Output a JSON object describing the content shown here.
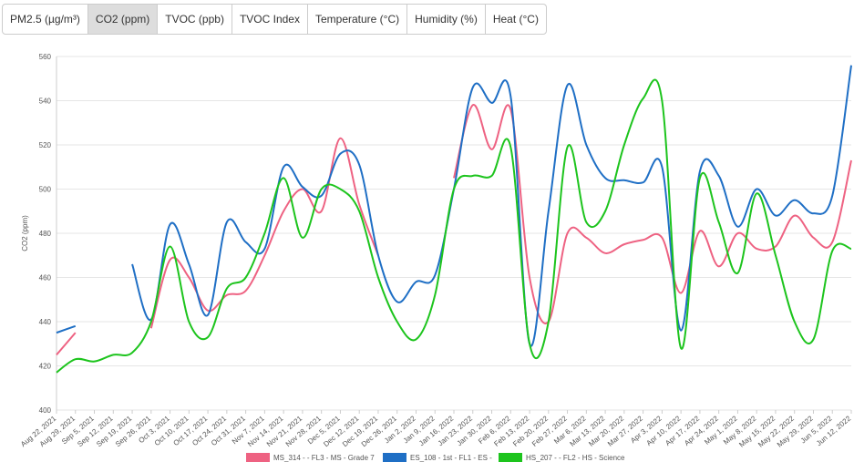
{
  "tabs": [
    "PM2.5 (µg/m³)",
    "CO2 (ppm)",
    "TVOC (ppb)",
    "TVOC Index",
    "Temperature (°C)",
    "Humidity (%)",
    "Heat (°C)"
  ],
  "active_tab": 1,
  "chart_data": {
    "type": "line",
    "y_label": "CO2 (ppm)",
    "categories": [
      "Aug 22, 2021",
      "Aug 29, 2021",
      "Sep 5, 2021",
      "Sep 12, 2021",
      "Sep 19, 2021",
      "Sep 26, 2021",
      "Oct 3, 2021",
      "Oct 10, 2021",
      "Oct 17, 2021",
      "Oct 24, 2021",
      "Oct 31, 2021",
      "Nov 7, 2021",
      "Nov 14, 2021",
      "Nov 21, 2021",
      "Nov 28, 2021",
      "Dec 5, 2021",
      "Dec 12, 2021",
      "Dec 19, 2021",
      "Dec 26, 2021",
      "Jan 2, 2022",
      "Jan 9, 2022",
      "Jan 16, 2022",
      "Jan 23, 2022",
      "Jan 30, 2022",
      "Feb 6, 2022",
      "Feb 13, 2022",
      "Feb 20, 2022",
      "Feb 27, 2022",
      "Mar 6, 2022",
      "Mar 13, 2022",
      "Mar 20, 2022",
      "Mar 27, 2022",
      "Apr 3, 2022",
      "Apr 10, 2022",
      "Apr 17, 2022",
      "Apr 24, 2022",
      "May 1, 2022",
      "May 8, 2022",
      "May 15, 2022",
      "May 22, 2022",
      "May 29, 2022",
      "Jun 5, 2022",
      "Jun 12, 2022"
    ],
    "series": [
      {
        "name": "MS_314 -  - FL3 - MS - Grade 7",
        "color": "#ee6282",
        "values": [
          425,
          435,
          null,
          null,
          null,
          437,
          468,
          460,
          445,
          452,
          454,
          470,
          490,
          500,
          490,
          523,
          493,
          470,
          null,
          null,
          null,
          505,
          538,
          518,
          536,
          460,
          440,
          480,
          478,
          471,
          475,
          477,
          478,
          453,
          481,
          465,
          480,
          473,
          474,
          488,
          478,
          476,
          513
        ]
      },
      {
        "name": "ES_108 - 1st - FL1 - ES -",
        "color": "#1f6fc5",
        "values": [
          435,
          438,
          null,
          null,
          466,
          441,
          484,
          466,
          443,
          485,
          476,
          473,
          510,
          501,
          497,
          516,
          511,
          470,
          449,
          458,
          461,
          500,
          546,
          539,
          542,
          430,
          490,
          547,
          520,
          505,
          504,
          503,
          510,
          436,
          508,
          506,
          483,
          500,
          488,
          495,
          489,
          497,
          556
        ]
      },
      {
        "name": "HS_207 -  - FL2 - HS - Science",
        "color": "#1dc41d",
        "values": [
          417,
          423,
          422,
          425,
          426,
          440,
          474,
          440,
          433,
          455,
          460,
          480,
          505,
          478,
          500,
          500,
          490,
          460,
          440,
          432,
          452,
          500,
          506,
          506,
          519,
          430,
          440,
          519,
          485,
          490,
          520,
          541,
          540,
          428,
          505,
          485,
          462,
          498,
          470,
          440,
          432,
          472,
          473
        ]
      }
    ],
    "ylim": [
      400,
      560
    ],
    "yticks": [
      400,
      420,
      440,
      460,
      480,
      500,
      520,
      540,
      560
    ],
    "grid": true
  }
}
